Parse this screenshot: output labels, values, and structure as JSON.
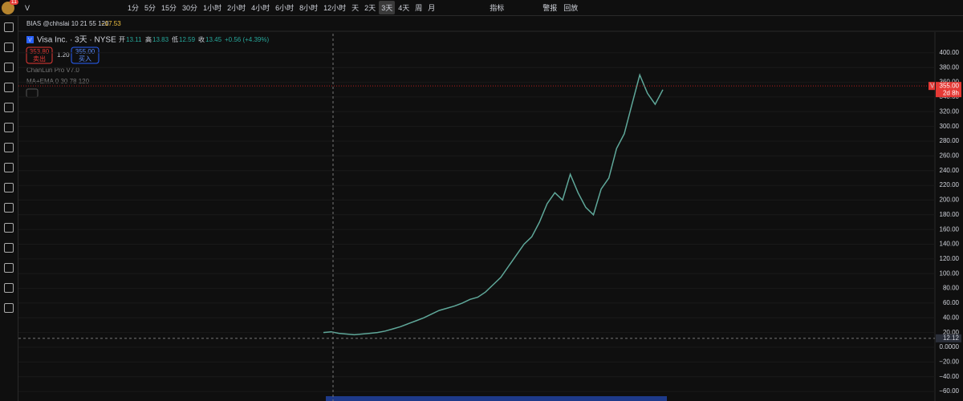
{
  "toolbar": {
    "symbol": "V",
    "badge": "11",
    "intervals": [
      "1分",
      "5分",
      "15分",
      "30分",
      "1小时",
      "2小时",
      "4小时",
      "6小时",
      "8小时",
      "12小时",
      "天",
      "2天",
      "3天",
      "4天",
      "周",
      "月"
    ],
    "active_index": 12,
    "indicators": "指标",
    "alerts": "警报",
    "replay": "回放"
  },
  "legend": {
    "bias_name": "BIAS @chhslai 10 21 55 120",
    "bias_value": "−17.53",
    "symbol_tag": "V",
    "title": "Visa Inc. · 3天 · NYSE",
    "ohlc": [
      {
        "label": "开",
        "value": "13.11"
      },
      {
        "label": "高",
        "value": "13.83"
      },
      {
        "label": "低",
        "value": "12.59"
      },
      {
        "label": "收",
        "value": "13.45"
      }
    ],
    "change": "+0.56 (+4.39%)",
    "sell_price": "353.80",
    "sell": "卖出",
    "spread": "1.20",
    "buy_price": "355.00",
    "buy": "买入",
    "studies": [
      "ChanLun Pro V7.0",
      "MA+EMA 0 30 78 120"
    ]
  },
  "chart_data": {
    "type": "line",
    "color": "#5fa89a",
    "values": [
      20,
      21,
      19,
      18,
      17,
      18,
      19,
      20,
      22,
      25,
      28,
      32,
      36,
      40,
      45,
      50,
      53,
      56,
      60,
      65,
      68,
      75,
      85,
      95,
      110,
      125,
      140,
      150,
      170,
      195,
      210,
      200,
      235,
      210,
      190,
      180,
      215,
      230,
      270,
      290,
      330,
      370,
      345,
      330,
      350
    ],
    "ylim": [
      -73,
      426
    ],
    "yticks": [
      {
        "value": 400,
        "label": "400.00"
      },
      {
        "value": 380,
        "label": "380.00"
      },
      {
        "value": 360,
        "label": "360.00"
      },
      {
        "value": 340,
        "label": "340.00"
      },
      {
        "value": 320,
        "label": "320.00"
      },
      {
        "value": 300,
        "label": "300.00"
      },
      {
        "value": 280,
        "label": "280.00"
      },
      {
        "value": 260,
        "label": "260.00"
      },
      {
        "value": 240,
        "label": "240.00"
      },
      {
        "value": 220,
        "label": "220.00"
      },
      {
        "value": 200,
        "label": "200.00"
      },
      {
        "value": 180,
        "label": "180.00"
      },
      {
        "value": 160,
        "label": "160.00"
      },
      {
        "value": 140,
        "label": "140.00"
      },
      {
        "value": 120,
        "label": "120.00"
      },
      {
        "value": 100,
        "label": "100.00"
      },
      {
        "value": 80,
        "label": "80.00"
      },
      {
        "value": 60,
        "label": "60.00"
      },
      {
        "value": 40,
        "label": "40.00"
      },
      {
        "value": 20,
        "label": "20.00"
      },
      {
        "value": 0,
        "label": "0.0000"
      },
      {
        "value": -20,
        "label": "−20.00"
      },
      {
        "value": -40,
        "label": "−40.00"
      },
      {
        "value": -60,
        "label": "−60.00"
      }
    ],
    "price_line": {
      "value": 355,
      "label": "355.00",
      "countdown": "2d 8h",
      "tag": "V"
    },
    "crosshair": {
      "value": 12.12
    }
  }
}
